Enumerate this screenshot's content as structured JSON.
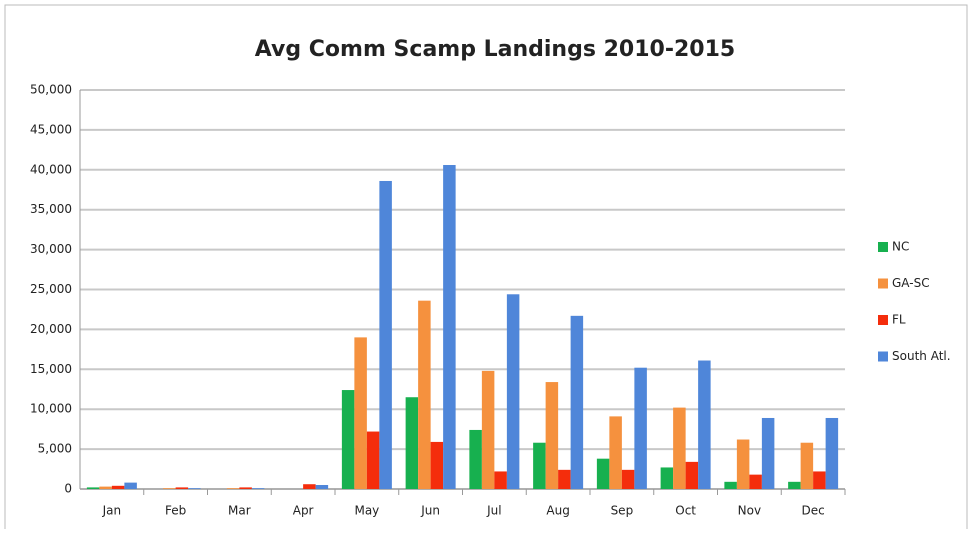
{
  "chart_data": {
    "type": "bar",
    "title": "Avg Comm Scamp Landings 2010-2015",
    "categories": [
      "Jan",
      "Feb",
      "Mar",
      "Apr",
      "May",
      "Jun",
      "Jul",
      "Aug",
      "Sep",
      "Oct",
      "Nov",
      "Dec"
    ],
    "series": [
      {
        "name": "NC",
        "color": "#17b04f",
        "values": [
          200,
          0,
          0,
          0,
          12400,
          11500,
          7400,
          5800,
          3800,
          2700,
          900,
          900
        ]
      },
      {
        "name": "GA-SC",
        "color": "#f5913e",
        "values": [
          300,
          100,
          100,
          0,
          19000,
          23600,
          14800,
          13400,
          9100,
          10200,
          6200,
          5800
        ]
      },
      {
        "name": "FL",
        "color": "#f42d0c",
        "values": [
          400,
          200,
          200,
          600,
          7200,
          5900,
          2200,
          2400,
          2400,
          3400,
          1800,
          2200
        ]
      },
      {
        "name": "South Atl.",
        "color": "#4f86d9",
        "values": [
          800,
          100,
          100,
          500,
          38600,
          40600,
          24400,
          21700,
          15200,
          16100,
          8900,
          8900
        ]
      }
    ],
    "ylim": [
      0,
      50000
    ],
    "yticks": [
      0,
      {
        "value": 5000,
        "label": "5,000"
      },
      {
        "value": 10000,
        "label": "10,000"
      },
      {
        "value": 15000,
        "label": "15,000"
      },
      {
        "value": 20000,
        "label": "20,000"
      },
      {
        "value": 25000,
        "label": "25,000"
      },
      {
        "value": 30000,
        "label": "30,000"
      },
      {
        "value": 35000,
        "label": "35,000"
      },
      {
        "value": 40000,
        "label": "40,000"
      },
      {
        "value": 45000,
        "label": "45,000"
      },
      {
        "value": 50000,
        "label": "50,000"
      }
    ],
    "grid": true,
    "legend": "right"
  }
}
